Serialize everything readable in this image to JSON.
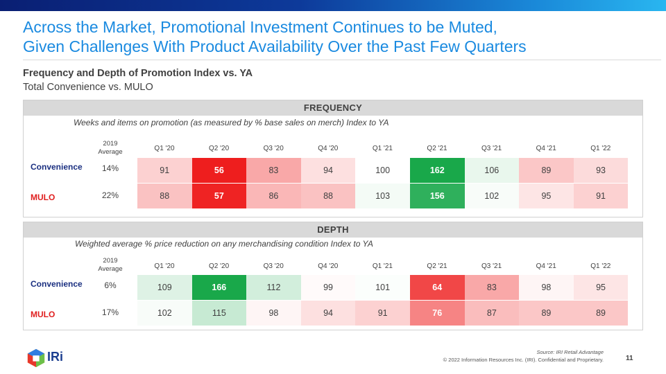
{
  "title_line1": "Across the Market, Promotional Investment Continues to be Muted,",
  "title_line2": "Given Challenges With Product Availability Over the Past Few Quarters",
  "subtitle": "Frequency and Depth of Promotion Index vs. YA",
  "subtitle2": "Total Convenience vs. MULO",
  "colors": {
    "title": "#1a8ae0",
    "convenience_label": "#1a2f80",
    "mulo_label": "#e02020",
    "panel_header_bg": "#d9d9d9",
    "strong_red": "#ee1c1c",
    "strong_green": "#1aa84a"
  },
  "frequency": {
    "header": "FREQUENCY",
    "note": "Weeks and items on promotion (as measured by % base sales on merch) Index to YA",
    "avg_header": "2019 Average",
    "quarters": [
      "Q1 '20",
      "Q2 '20",
      "Q3 '20",
      "Q4 '20",
      "Q1 '21",
      "Q2 '21",
      "Q3 '21",
      "Q4 '21",
      "Q1 '22"
    ],
    "rows": [
      {
        "label": "Convenience",
        "avg": "14%",
        "values": [
          91,
          56,
          83,
          94,
          100,
          162,
          106,
          89,
          93
        ]
      },
      {
        "label": "MULO",
        "avg": "22%",
        "values": [
          88,
          57,
          86,
          88,
          103,
          156,
          102,
          95,
          91
        ]
      }
    ]
  },
  "depth": {
    "header": "DEPTH",
    "note": "Weighted average % price reduction on any merchandising condition Index to YA",
    "avg_header": "2019 Average",
    "quarters": [
      "Q1 '20",
      "Q2 '20",
      "Q3 '20",
      "Q4 '20",
      "Q1 '21",
      "Q2 '21",
      "Q3 '21",
      "Q4 '21",
      "Q1 '22"
    ],
    "rows": [
      {
        "label": "Convenience",
        "avg": "6%",
        "values": [
          109,
          166,
          112,
          99,
          101,
          64,
          83,
          98,
          95
        ]
      },
      {
        "label": "MULO",
        "avg": "17%",
        "values": [
          102,
          115,
          98,
          94,
          91,
          76,
          87,
          89,
          89
        ]
      }
    ]
  },
  "footer": {
    "source": "Source: IRI Retail Advantage",
    "copyright": "© 2022 Information Resources Inc. (IRI). Confidential and Proprietary.",
    "page_number": "11",
    "logo_text": "IRi"
  }
}
